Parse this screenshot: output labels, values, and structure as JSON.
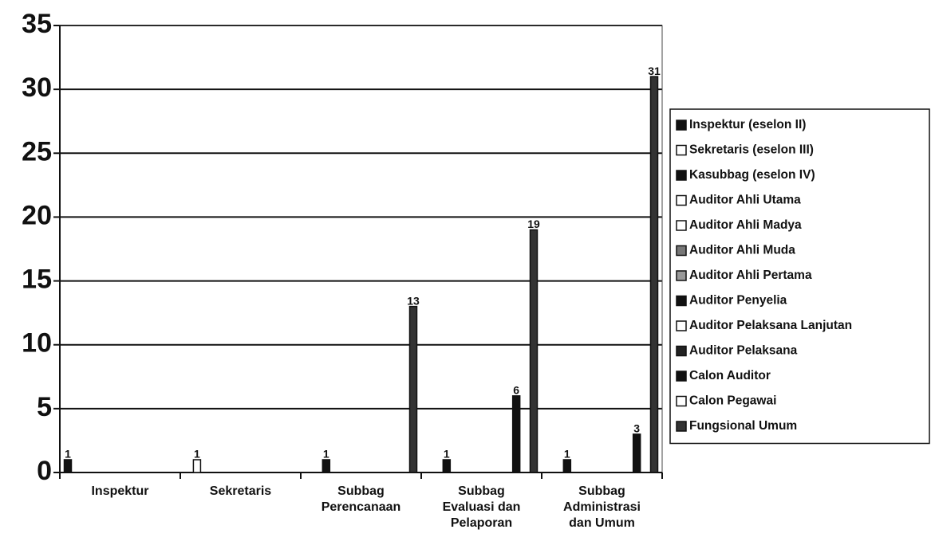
{
  "chart_data": {
    "type": "bar",
    "categories": [
      "Inspektur",
      "Sekretaris",
      "Subbag Perencanaan",
      "Subbag Evaluasi dan Pelaporan",
      "Subbag Administrasi dan Umum"
    ],
    "series": [
      {
        "name": "Inspektur (eselon II)",
        "color": "#111111",
        "values": [
          1,
          null,
          null,
          null,
          null
        ]
      },
      {
        "name": "Sekretaris (eselon III)",
        "color": "#ffffff",
        "values": [
          null,
          1,
          null,
          null,
          null
        ]
      },
      {
        "name": "Kasubbag (eselon IV)",
        "color": "#111111",
        "values": [
          null,
          null,
          1,
          1,
          1
        ]
      },
      {
        "name": "Auditor Ahli Utama",
        "color": "#ffffff",
        "values": [
          null,
          null,
          null,
          null,
          null
        ]
      },
      {
        "name": "Auditor Ahli Madya",
        "color": "#ffffff",
        "values": [
          null,
          null,
          null,
          null,
          null
        ]
      },
      {
        "name": "Auditor Ahli Muda",
        "color": "#777777",
        "values": [
          null,
          null,
          null,
          null,
          null
        ]
      },
      {
        "name": "Auditor Ahli Pertama",
        "color": "#999999",
        "values": [
          null,
          null,
          null,
          null,
          null
        ]
      },
      {
        "name": "Auditor Penyelia",
        "color": "#111111",
        "values": [
          null,
          null,
          null,
          null,
          null
        ]
      },
      {
        "name": "Auditor Pelaksana Lanjutan",
        "color": "#ffffff",
        "values": [
          null,
          null,
          null,
          null,
          null
        ]
      },
      {
        "name": "Auditor Pelaksana",
        "color": "#222222",
        "values": [
          null,
          null,
          null,
          null,
          null
        ]
      },
      {
        "name": "Calon Auditor",
        "color": "#111111",
        "values": [
          null,
          null,
          null,
          6,
          3
        ]
      },
      {
        "name": "Calon Pegawai",
        "color": "#ffffff",
        "values": [
          null,
          null,
          null,
          null,
          null
        ]
      },
      {
        "name": "Fungsional Umum",
        "color": "#333333",
        "values": [
          null,
          null,
          13,
          19,
          31
        ]
      }
    ],
    "ylim": [
      0,
      35
    ],
    "yticks": [
      0,
      5,
      10,
      15,
      20,
      25,
      30,
      35
    ],
    "grid": true,
    "legend": "right"
  }
}
